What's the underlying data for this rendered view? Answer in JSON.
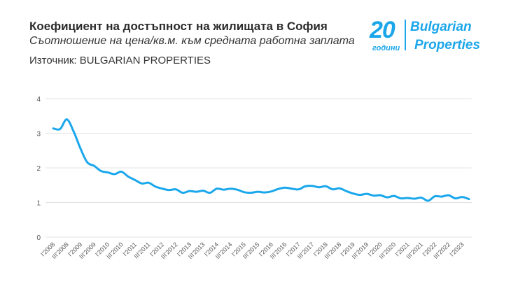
{
  "header": {
    "title": "Коефициент на достъпност на жилищата в София",
    "subtitle": "Съотношение на цена/кв.м. към средната работна заплата",
    "source": "Източник: BULGARIAN PROPERTIES"
  },
  "logo": {
    "text_number": "20",
    "text_years": "години",
    "text_brand_1": "Bulgarian",
    "text_brand_2": "Properties",
    "color": "#1ba6ea"
  },
  "chart_data": {
    "type": "line",
    "title": "",
    "xlabel": "",
    "ylabel": "",
    "ylim": [
      0,
      4
    ],
    "y_ticks": [
      0,
      1,
      2,
      3,
      4
    ],
    "grid": true,
    "line_color": "#1aa7ec",
    "x_tick_labels": [
      "I'2008",
      "III'2008",
      "I'2009",
      "III'2009",
      "I'2010",
      "III'2010",
      "I'2011",
      "III'2011",
      "I'2012",
      "III'2012",
      "I'2013",
      "III'2013",
      "I'2014",
      "III'2014",
      "I'2015",
      "III'2015",
      "I'2016",
      "III'2016",
      "I'2017",
      "III'2017",
      "I'2018",
      "III'2018",
      "I'2019",
      "III'2019",
      "I'2020",
      "III'2020",
      "I'2021",
      "III'2021",
      "I'2022",
      "III'2022",
      "I'2023"
    ],
    "x_start": "I'2008",
    "x_frequency": "quarterly",
    "values": [
      3.14,
      3.12,
      3.4,
      3.05,
      2.56,
      2.16,
      2.06,
      1.91,
      1.87,
      1.82,
      1.89,
      1.75,
      1.65,
      1.55,
      1.57,
      1.46,
      1.4,
      1.36,
      1.38,
      1.28,
      1.33,
      1.31,
      1.34,
      1.28,
      1.4,
      1.37,
      1.4,
      1.37,
      1.3,
      1.28,
      1.31,
      1.29,
      1.32,
      1.39,
      1.43,
      1.4,
      1.38,
      1.47,
      1.48,
      1.44,
      1.47,
      1.38,
      1.41,
      1.33,
      1.26,
      1.22,
      1.25,
      1.2,
      1.21,
      1.15,
      1.19,
      1.12,
      1.13,
      1.11,
      1.14,
      1.05,
      1.18,
      1.17,
      1.21,
      1.12,
      1.16,
      1.1
    ]
  }
}
